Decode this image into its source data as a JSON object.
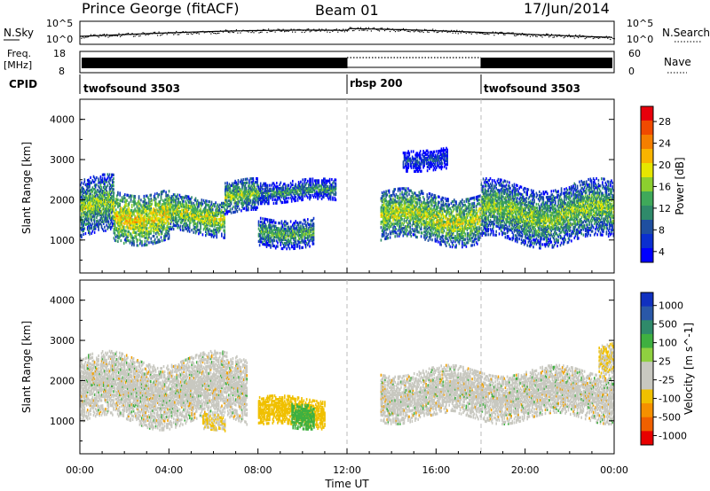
{
  "header": {
    "station": "Prince George (fitACF)",
    "beam": "Beam 01",
    "date": "17/Jun/2014"
  },
  "noise_panel": {
    "left_label": "N.Sky",
    "right_label": "N.Search",
    "left_ticks": [
      "10^5",
      "10^0"
    ],
    "right_ticks": [
      "10^5",
      "10^0"
    ]
  },
  "freq_panel": {
    "label_line1": "Freq.",
    "label_line2": "[MHz]",
    "right_label": "Nave",
    "left_ticks": [
      "18",
      "8"
    ],
    "right_ticks": [
      "60",
      "0"
    ]
  },
  "cpid": {
    "label": "CPID",
    "segments": [
      {
        "name": "twofsound 3503",
        "start_hour": 0,
        "end_hour": 12
      },
      {
        "name": "rbsp 200",
        "start_hour": 12,
        "end_hour": 18
      },
      {
        "name": "twofsound 3503",
        "start_hour": 18,
        "end_hour": 24
      }
    ]
  },
  "x_axis": {
    "label": "Time UT",
    "ticks": [
      "00:00",
      "04:00",
      "08:00",
      "12:00",
      "16:00",
      "20:00",
      "00:00"
    ]
  },
  "chart_data": [
    {
      "type": "heatmap",
      "quantity": "Power",
      "xlabel": "Time UT",
      "ylabel": "Slant Range [km]",
      "xlim": [
        0,
        24
      ],
      "ylim": [
        180,
        4500
      ],
      "yticks": [
        "1000",
        "2000",
        "3000",
        "4000"
      ],
      "colorbar": {
        "label": "Power [dB]",
        "ticks": [
          "28",
          "24",
          "20",
          "16",
          "12",
          "8",
          "4"
        ],
        "colors": [
          "#e8000b",
          "#f04a00",
          "#f57f00",
          "#f9b400",
          "#e6e600",
          "#8ccf2f",
          "#3fa95a",
          "#2f8a6a",
          "#1f4fa0",
          "#0b2fd0",
          "#0000ff"
        ]
      },
      "echo_regions": [
        {
          "t_start": 0.0,
          "t_end": 1.5,
          "r_start": 1100,
          "r_end": 2500,
          "level": 16
        },
        {
          "t_start": 1.5,
          "t_end": 4.0,
          "r_start": 1050,
          "r_end": 2300,
          "level": 20
        },
        {
          "t_start": 4.0,
          "t_end": 6.5,
          "r_start": 1200,
          "r_end": 2100,
          "level": 18
        },
        {
          "t_start": 6.5,
          "t_end": 8.0,
          "r_start": 1700,
          "r_end": 2500,
          "level": 16
        },
        {
          "t_start": 8.0,
          "t_end": 10.5,
          "r_start": 900,
          "r_end": 1600,
          "level": 14
        },
        {
          "t_start": 8.0,
          "t_end": 11.5,
          "r_start": 2000,
          "r_end": 2500,
          "level": 12
        },
        {
          "t_start": 13.5,
          "t_end": 18.0,
          "r_start": 1000,
          "r_end": 2200,
          "level": 18
        },
        {
          "t_start": 18.0,
          "t_end": 24.0,
          "r_start": 1000,
          "r_end": 2400,
          "level": 16
        },
        {
          "t_start": 14.5,
          "t_end": 16.5,
          "r_start": 2800,
          "r_end": 3300,
          "level": 8
        }
      ]
    },
    {
      "type": "heatmap",
      "quantity": "Velocity",
      "xlabel": "Time UT",
      "ylabel": "Slant Range [km]",
      "xlim": [
        0,
        24
      ],
      "ylim": [
        180,
        4500
      ],
      "yticks": [
        "1000",
        "2000",
        "3000",
        "4000"
      ],
      "colorbar": {
        "label": "Velocity [m s^-1]",
        "ticks": [
          "1000",
          "500",
          "100",
          "25",
          "-25",
          "-100",
          "-500",
          "-1000"
        ],
        "colors": [
          "#1030c0",
          "#2a58a8",
          "#2f8a6a",
          "#3fb040",
          "#8fd040",
          "#c8c8c0",
          "#c8c8c0",
          "#f0c000",
          "#f59000",
          "#f06000",
          "#e80000"
        ]
      },
      "echo_regions": [
        {
          "t_start": 0.0,
          "t_end": 7.5,
          "r_start": 1000,
          "r_end": 2600,
          "velocity": 0
        },
        {
          "t_start": 5.5,
          "t_end": 6.5,
          "r_start": 800,
          "r_end": 1200,
          "velocity": -300
        },
        {
          "t_start": 8.0,
          "t_end": 11.0,
          "r_start": 900,
          "r_end": 1600,
          "velocity": -400
        },
        {
          "t_start": 9.5,
          "t_end": 10.5,
          "r_start": 900,
          "r_end": 1500,
          "velocity": 400
        },
        {
          "t_start": 13.5,
          "t_end": 24.0,
          "r_start": 1100,
          "r_end": 2300,
          "velocity": 0
        },
        {
          "t_start": 23.3,
          "t_end": 24.0,
          "r_start": 2200,
          "r_end": 3000,
          "velocity": -300
        }
      ]
    }
  ]
}
